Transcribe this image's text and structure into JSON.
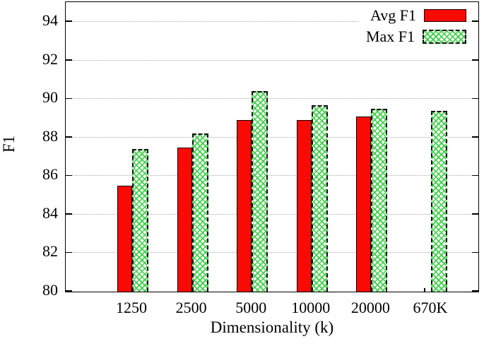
{
  "chart_data": {
    "type": "bar",
    "title": "",
    "xlabel": "Dimensionality (k)",
    "ylabel": "F1",
    "categories": [
      "1250",
      "2500",
      "5000",
      "10000",
      "20000",
      "670K"
    ],
    "series": [
      {
        "name": "Avg F1",
        "color": "#f90a05",
        "fill": "solid",
        "values": [
          85.5,
          87.5,
          88.9,
          88.9,
          89.1,
          null
        ]
      },
      {
        "name": "Max F1",
        "color": "#38cd42",
        "fill": "green-crosshatch",
        "values": [
          87.4,
          88.2,
          90.4,
          89.7,
          89.5,
          89.4
        ]
      }
    ],
    "ylim": [
      80,
      95
    ],
    "yticks": [
      80,
      82,
      84,
      86,
      88,
      90,
      92,
      94
    ],
    "grid": "horizontal-dotted",
    "legend_position": "top-right-inside"
  }
}
